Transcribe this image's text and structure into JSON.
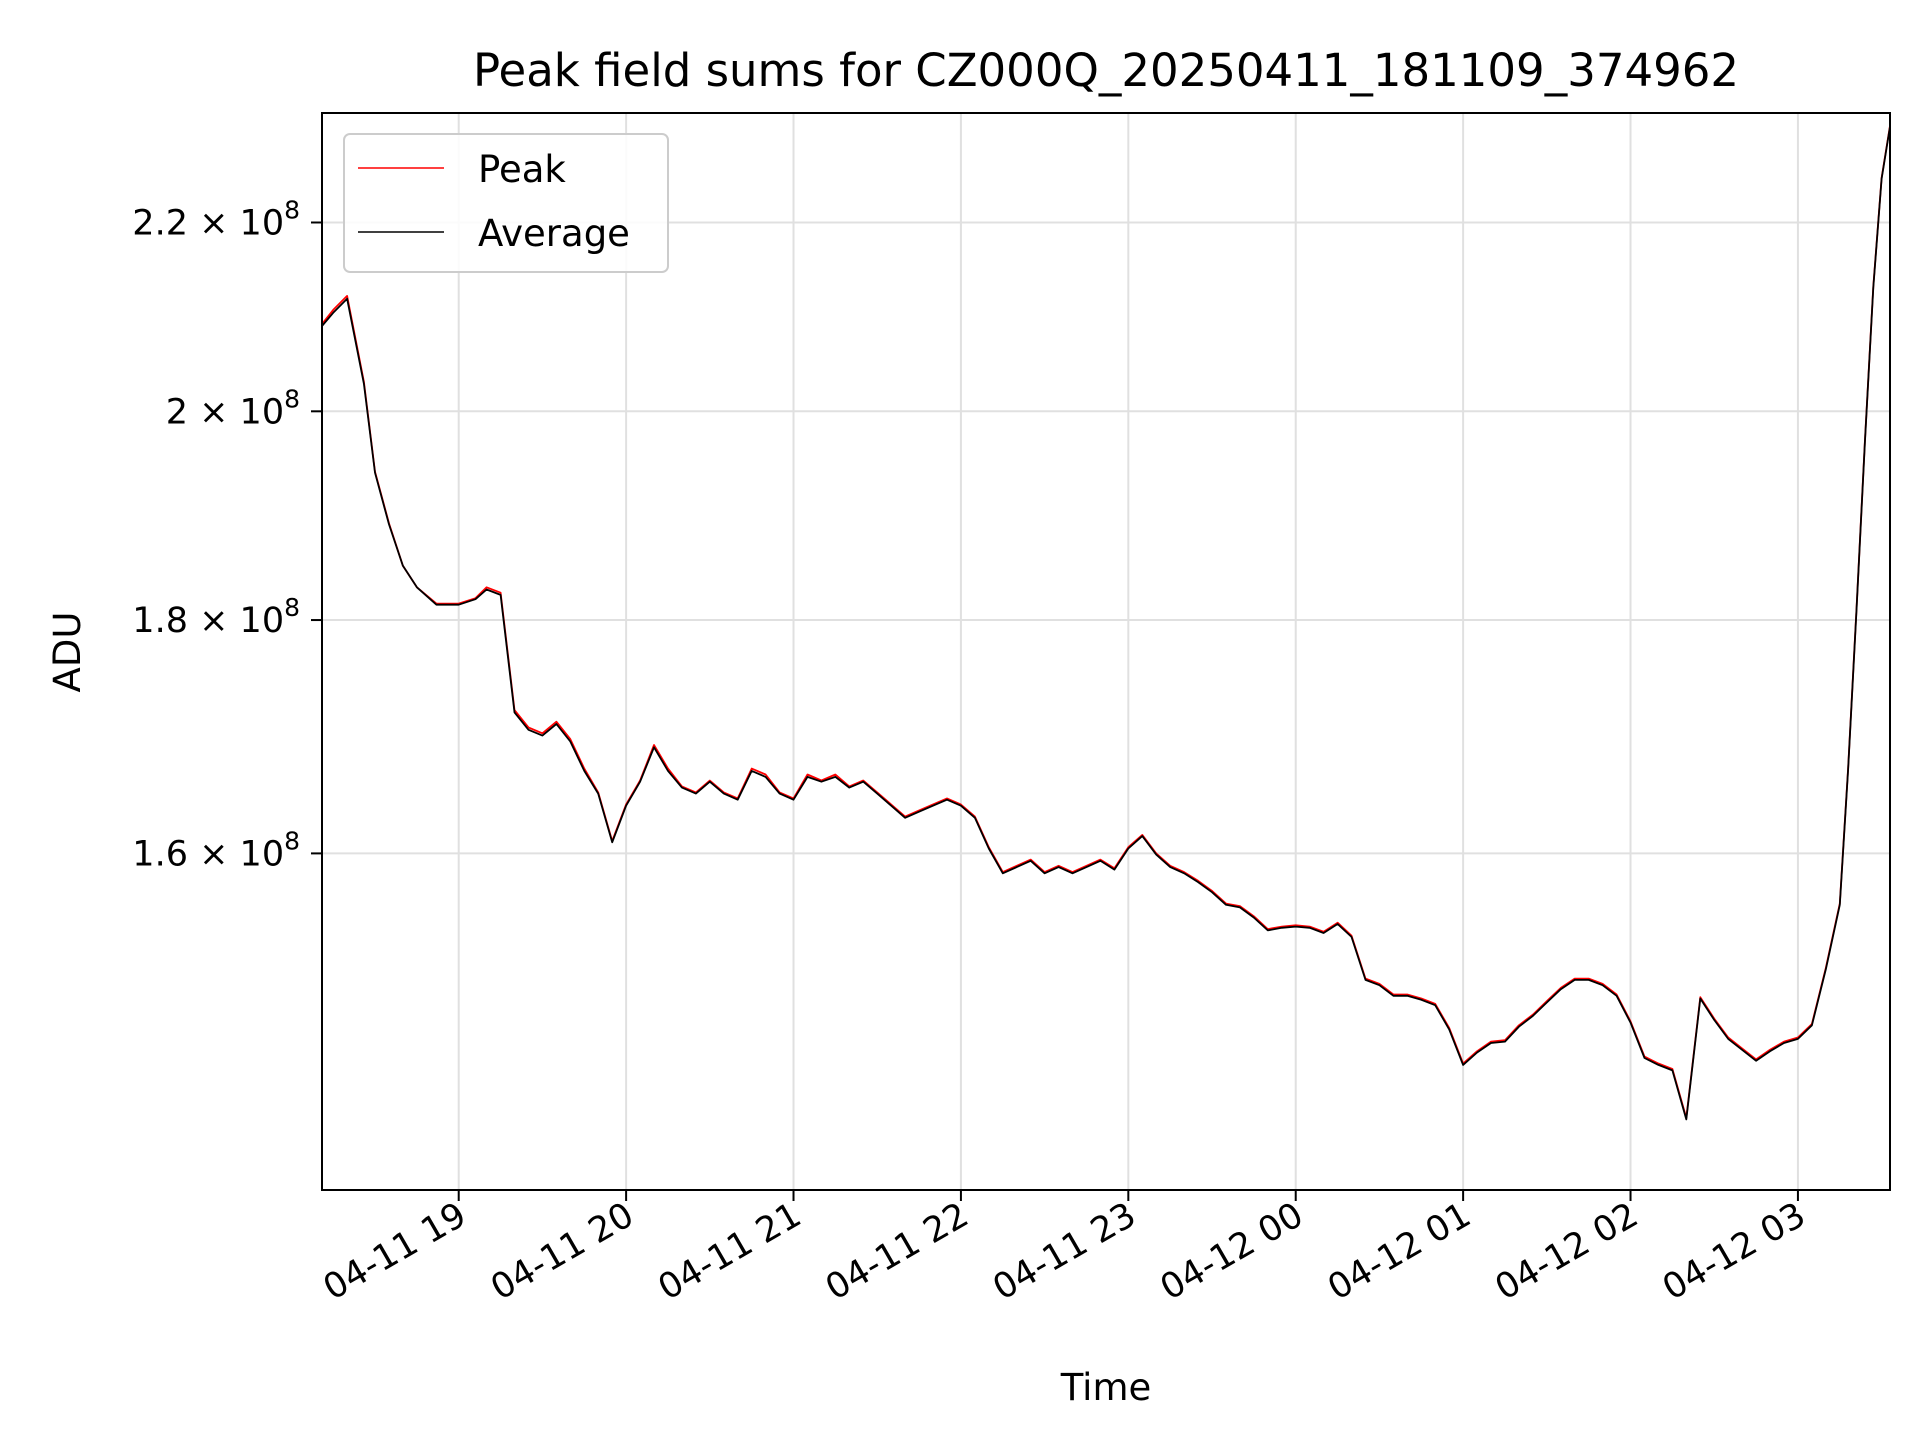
{
  "chart_data": {
    "type": "line",
    "title": "Peak field sums for CZ000Q_20250411_181109_374962",
    "xlabel": "Time",
    "ylabel": "ADU",
    "y_scale": "log",
    "xlim": [
      "04-11 18:11",
      "04-12 03:33"
    ],
    "ylim": [
      135000000,
      232500000
    ],
    "grid": true,
    "legend_position": "top-left",
    "x_ticks": [
      "04-11 19",
      "04-11 20",
      "04-11 21",
      "04-11 22",
      "04-11 23",
      "04-12 00",
      "04-12 01",
      "04-12 02",
      "04-12 03"
    ],
    "y_ticks": [
      {
        "value": 160000000,
        "mantissa": "1.6",
        "exponent": "8"
      },
      {
        "value": 180000000,
        "mantissa": "1.8",
        "exponent": "8"
      },
      {
        "value": 200000000,
        "mantissa": "2",
        "exponent": "8"
      },
      {
        "value": 220000000,
        "mantissa": "2.2",
        "exponent": "8"
      }
    ],
    "times": [
      "04-11 18:11",
      "04-11 18:15",
      "04-11 18:20",
      "04-11 18:26",
      "04-11 18:30",
      "04-11 18:35",
      "04-11 18:40",
      "04-11 18:45",
      "04-11 18:52",
      "04-11 19:00",
      "04-11 19:06",
      "04-11 19:10",
      "04-11 19:15",
      "04-11 19:20",
      "04-11 19:25",
      "04-11 19:30",
      "04-11 19:35",
      "04-11 19:40",
      "04-11 19:45",
      "04-11 19:50",
      "04-11 19:55",
      "04-11 20:00",
      "04-11 20:05",
      "04-11 20:10",
      "04-11 20:15",
      "04-11 20:20",
      "04-11 20:25",
      "04-11 20:30",
      "04-11 20:35",
      "04-11 20:40",
      "04-11 20:45",
      "04-11 20:50",
      "04-11 20:55",
      "04-11 21:00",
      "04-11 21:05",
      "04-11 21:10",
      "04-11 21:15",
      "04-11 21:20",
      "04-11 21:25",
      "04-11 21:30",
      "04-11 21:35",
      "04-11 21:40",
      "04-11 21:45",
      "04-11 21:50",
      "04-11 21:55",
      "04-11 22:00",
      "04-11 22:05",
      "04-11 22:10",
      "04-11 22:15",
      "04-11 22:20",
      "04-11 22:25",
      "04-11 22:30",
      "04-11 22:35",
      "04-11 22:40",
      "04-11 22:45",
      "04-11 22:50",
      "04-11 22:55",
      "04-11 23:00",
      "04-11 23:05",
      "04-11 23:10",
      "04-11 23:15",
      "04-11 23:20",
      "04-11 23:25",
      "04-11 23:30",
      "04-11 23:35",
      "04-11 23:40",
      "04-11 23:45",
      "04-11 23:50",
      "04-11 23:55",
      "04-12 00:00",
      "04-12 00:05",
      "04-12 00:10",
      "04-12 00:15",
      "04-12 00:20",
      "04-12 00:25",
      "04-12 00:30",
      "04-12 00:35",
      "04-12 00:40",
      "04-12 00:45",
      "04-12 00:50",
      "04-12 00:55",
      "04-12 01:00",
      "04-12 01:05",
      "04-12 01:10",
      "04-12 01:15",
      "04-12 01:20",
      "04-12 01:25",
      "04-12 01:30",
      "04-12 01:35",
      "04-12 01:40",
      "04-12 01:45",
      "04-12 01:50",
      "04-12 01:55",
      "04-12 02:00",
      "04-12 02:05",
      "04-12 02:10",
      "04-12 02:15",
      "04-12 02:20",
      "04-12 02:25",
      "04-12 02:30",
      "04-12 02:35",
      "04-12 02:40",
      "04-12 02:45",
      "04-12 02:50",
      "04-12 02:55",
      "04-12 03:00",
      "04-12 03:05",
      "04-12 03:10",
      "04-12 03:15",
      "04-12 03:18",
      "04-12 03:21",
      "04-12 03:24",
      "04-12 03:27",
      "04-12 03:30",
      "04-12 03:33"
    ],
    "series": [
      {
        "name": "Peak",
        "color": "#ff0000",
        "values": [
          209000000,
          210500000,
          212000000,
          203000000,
          194000000,
          189000000,
          185000000,
          183000000,
          181500000,
          181500000,
          182000000,
          183000000,
          182500000,
          172000000,
          170500000,
          170000000,
          171000000,
          169500000,
          167000000,
          165000000,
          161000000,
          164000000,
          166000000,
          169000000,
          167000000,
          165500000,
          165000000,
          166000000,
          165000000,
          164500000,
          167000000,
          166500000,
          165000000,
          164500000,
          166500000,
          166000000,
          166500000,
          165500000,
          166000000,
          165000000,
          164000000,
          163000000,
          163500000,
          164000000,
          164500000,
          164000000,
          163000000,
          160500000,
          158500000,
          159000000,
          159500000,
          158500000,
          159000000,
          158500000,
          159000000,
          159500000,
          158800000,
          160500000,
          161500000,
          160000000,
          159000000,
          158500000,
          157800000,
          157000000,
          156000000,
          155800000,
          155000000,
          154000000,
          154200000,
          154300000,
          154200000,
          153800000,
          154500000,
          153500000,
          150200000,
          149800000,
          149000000,
          149000000,
          148700000,
          148300000,
          146500000,
          143900000,
          144800000,
          145500000,
          145600000,
          146700000,
          147500000,
          148500000,
          149500000,
          150200000,
          150200000,
          149800000,
          149000000,
          147000000,
          144400000,
          143900000,
          143500000,
          140000000,
          148800000,
          147200000,
          145800000,
          145000000,
          144200000,
          144900000,
          145500000,
          145800000,
          146800000,
          151000000,
          156000000,
          167000000,
          181000000,
          197000000,
          213000000,
          225000000,
          231000000
        ]
      },
      {
        "name": "Average",
        "color": "#000000",
        "values": [
          208800000,
          210200000,
          211700000,
          202800000,
          193900000,
          188900000,
          185000000,
          183000000,
          181400000,
          181400000,
          181900000,
          182800000,
          182300000,
          171800000,
          170300000,
          169800000,
          170800000,
          169300000,
          166800000,
          164900000,
          160900000,
          163900000,
          165900000,
          168800000,
          166800000,
          165400000,
          164900000,
          165900000,
          164900000,
          164400000,
          166800000,
          166300000,
          164900000,
          164400000,
          166300000,
          165900000,
          166300000,
          165400000,
          165900000,
          164900000,
          163900000,
          162900000,
          163400000,
          163900000,
          164400000,
          163900000,
          162900000,
          160400000,
          158400000,
          158900000,
          159400000,
          158400000,
          158900000,
          158400000,
          158900000,
          159400000,
          158700000,
          160400000,
          161400000,
          159900000,
          158900000,
          158400000,
          157700000,
          156900000,
          155900000,
          155700000,
          154900000,
          153900000,
          154100000,
          154200000,
          154100000,
          153700000,
          154400000,
          153400000,
          150100000,
          149700000,
          148900000,
          148900000,
          148600000,
          148200000,
          146400000,
          143800000,
          144700000,
          145400000,
          145500000,
          146600000,
          147400000,
          148400000,
          149400000,
          150100000,
          150100000,
          149700000,
          148900000,
          146900000,
          144300000,
          143800000,
          143400000,
          139900000,
          148700000,
          147100000,
          145700000,
          144900000,
          144100000,
          144800000,
          145400000,
          145700000,
          146700000,
          150900000,
          155900000,
          166900000,
          180900000,
          196900000,
          212900000,
          224900000,
          230900000
        ]
      }
    ]
  }
}
